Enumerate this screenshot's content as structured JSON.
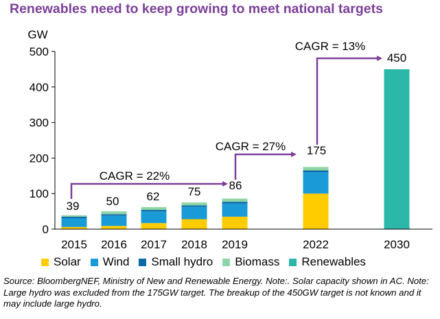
{
  "title": "Renewables need to keep growing to meet national targets",
  "source_note": "Source: BloombergNEF, Ministry of New and Renewable Energy. Note:. Solar capacity shown in AC. Note: Large hydro was excluded from the 175GW target. The breakup of the 450GW target is not known and it may include large hydro.",
  "chart_data": {
    "type": "bar",
    "stacked": true,
    "ylabel": "GW",
    "ylim": [
      0,
      500
    ],
    "yticks": [
      0,
      100,
      200,
      300,
      400,
      500
    ],
    "grid": false,
    "legend_position": "bottom",
    "categories": [
      "2015",
      "2016",
      "2017",
      "2018",
      "2019",
      "2022",
      "2030"
    ],
    "series": [
      {
        "name": "Solar",
        "color": "#ffcc00",
        "values": [
          6,
          9,
          17,
          28,
          35,
          100,
          0
        ]
      },
      {
        "name": "Wind",
        "color": "#1a9bd7",
        "values": [
          25,
          29,
          33,
          35,
          37,
          60,
          0
        ]
      },
      {
        "name": "Small hydro",
        "color": "#0b6aa6",
        "values": [
          4,
          4,
          4,
          4,
          5,
          5,
          0
        ]
      },
      {
        "name": "Biomass",
        "color": "#8fd4a6",
        "values": [
          4,
          8,
          8,
          8,
          9,
          10,
          0
        ]
      },
      {
        "name": "Renewables",
        "color": "#2bb8a8",
        "values": [
          0,
          0,
          0,
          0,
          0,
          0,
          450
        ]
      }
    ],
    "totals": [
      "39",
      "50",
      "62",
      "75",
      "86",
      "175",
      "450"
    ],
    "annotations": [
      {
        "text": "CAGR = 22%",
        "from": "2015",
        "to": "2019"
      },
      {
        "text": "CAGR = 27%",
        "from": "2019",
        "to": "2022"
      },
      {
        "text": "CAGR = 13%",
        "from": "2022",
        "to": "2030"
      }
    ],
    "arrow_color": "#7b3f98"
  }
}
